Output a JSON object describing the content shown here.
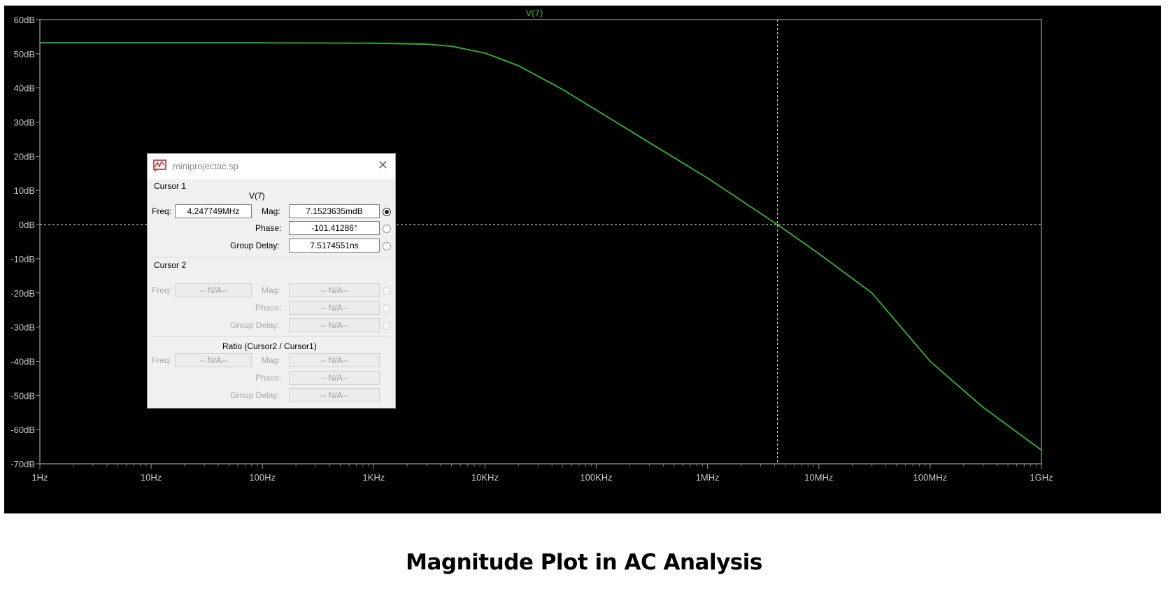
{
  "chart_data": {
    "type": "line",
    "trace_label": "V(7)",
    "xscale": "log",
    "xlim": [
      1,
      1000000000
    ],
    "ylim": [
      -70,
      60
    ],
    "x_tick_labels": [
      "1Hz",
      "10Hz",
      "100Hz",
      "1KHz",
      "10KHz",
      "100KHz",
      "1MHz",
      "10MHz",
      "100MHz",
      "1GHz"
    ],
    "y_tick_labels": [
      "60dB",
      "50dB",
      "40dB",
      "30dB",
      "20dB",
      "10dB",
      "0dB",
      "-10dB",
      "-20dB",
      "-30dB",
      "-40dB",
      "-50dB",
      "-60dB",
      "-70dB"
    ],
    "grid": false,
    "series": [
      {
        "name": "V(7)",
        "color": "#2eb82e",
        "x": [
          1,
          10,
          100,
          1000,
          3000,
          5000,
          10000,
          20000,
          50000,
          100000,
          300000,
          1000000,
          4247749,
          10000000,
          30000000,
          100000000,
          300000000,
          1000000000
        ],
        "y": [
          53.2,
          53.2,
          53.2,
          53.1,
          52.8,
          52.2,
          50.2,
          46.5,
          39.5,
          33.5,
          24.0,
          13.6,
          0.0,
          -8.5,
          -20.0,
          -40.0,
          -53.5,
          -66.0
        ]
      }
    ],
    "cursor": {
      "x": 4247749,
      "y": 0
    }
  },
  "dialog": {
    "title": "miniprojectac.sp",
    "cursor1_label": "Cursor 1",
    "trace_name": "V(7)",
    "freq_label": "Freq:",
    "freq_value": "4.247749MHz",
    "mag_label": "Mag:",
    "mag_value": "7.1523635mdB",
    "phase_label": "Phase:",
    "phase_value": "-101.41286°",
    "group_delay_label": "Group Delay:",
    "group_delay_value": "7.5174551ns",
    "cursor2_label": "Cursor 2",
    "c2_freq_label": "Freq:",
    "c2_freq_value": "-- N/A--",
    "c2_mag_label": "Mag:",
    "c2_mag_value": "-- N/A--",
    "c2_phase_label": "Phase:",
    "c2_phase_value": "-- N/A--",
    "c2_group_delay_label": "Group Delay:",
    "c2_group_delay_value": "-- N/A--",
    "ratio_label": "Ratio (Cursor2 / Cursor1)",
    "r_freq_label": "Freq:",
    "r_freq_value": "-- N/A--",
    "r_mag_label": "Mag:",
    "r_mag_value": "-- N/A--",
    "r_phase_label": "Phase:",
    "r_phase_value": "-- N/A--",
    "r_group_delay_label": "Group Delay:",
    "r_group_delay_value": "-- N/A--"
  },
  "caption": "Magnitude Plot in AC Analysis"
}
